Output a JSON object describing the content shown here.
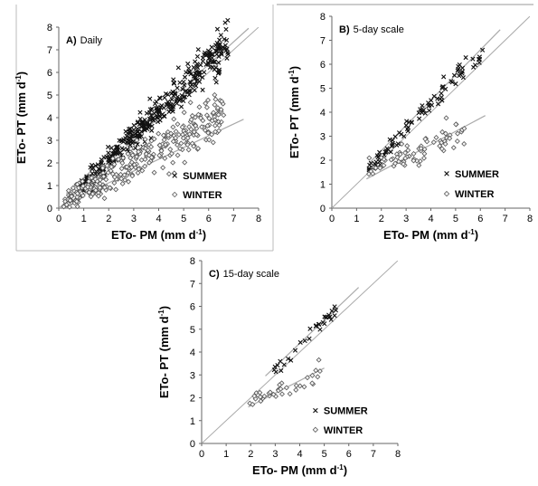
{
  "chart_data": [
    {
      "type": "scatter",
      "panel_label": "A)",
      "title": "Daily",
      "xlabel": "ETo- PM (mm d",
      "ylabel": "ETo- PT (mm d",
      "unit_superscript": "-1",
      "label_close": ")",
      "xlim": [
        0,
        8
      ],
      "ylim": [
        0,
        8
      ],
      "xticks": [
        "0",
        "1",
        "2",
        "3",
        "4",
        "5",
        "6",
        "7",
        "8"
      ],
      "yticks": [
        "0",
        "1",
        "2",
        "3",
        "4",
        "5",
        "6",
        "7",
        "8"
      ],
      "grid": false,
      "legend_position": "bottom-right",
      "one_to_one_line": true,
      "series": [
        {
          "name": "SUMMER",
          "marker": "x",
          "x_range": [
            0.8,
            6.8
          ],
          "slope": 1.07,
          "intercept": 0.0,
          "scatter": 0.35,
          "n": 380,
          "fit": {
            "slope": 1.0,
            "intercept": 0.35,
            "x": [
              0.3,
              7.6
            ]
          }
        },
        {
          "name": "WINTER",
          "marker": "diamond",
          "x_range": [
            0.2,
            6.6
          ],
          "slope": 0.62,
          "intercept": 0.15,
          "scatter": 0.45,
          "n": 330,
          "fit": {
            "slope": 0.52,
            "intercept": 0.08,
            "x": [
              0.2,
              7.4
            ]
          }
        }
      ]
    },
    {
      "type": "scatter",
      "panel_label": "B)",
      "title": "5-day scale",
      "xlabel": "ETo- PM (mm d",
      "ylabel": "ETo- PT (mm d",
      "unit_superscript": "-1",
      "label_close": ")",
      "xlim": [
        0,
        8
      ],
      "ylim": [
        0,
        8
      ],
      "xticks": [
        "0",
        "1",
        "2",
        "3",
        "4",
        "5",
        "6",
        "7",
        "8"
      ],
      "yticks": [
        "0",
        "1",
        "2",
        "3",
        "4",
        "5",
        "6",
        "7",
        "8"
      ],
      "grid": false,
      "legend_position": "bottom-right",
      "one_to_one_line": true,
      "series": [
        {
          "name": "SUMMER",
          "marker": "x",
          "x_range": [
            1.5,
            6.2
          ],
          "slope": 1.08,
          "intercept": 0.0,
          "scatter": 0.2,
          "n": 90,
          "fit": {
            "slope": 1.05,
            "intercept": 0.3,
            "x": [
              1.5,
              6.8
            ]
          }
        },
        {
          "name": "WINTER",
          "marker": "diamond",
          "x_range": [
            1.4,
            5.4
          ],
          "slope": 0.45,
          "intercept": 0.9,
          "scatter": 0.3,
          "n": 75,
          "fit": {
            "slope": 0.55,
            "intercept": 0.45,
            "x": [
              1.4,
              6.2
            ]
          }
        }
      ]
    },
    {
      "type": "scatter",
      "panel_label": "C)",
      "title": "15-day scale",
      "xlabel": "ETo- PM (mm d",
      "ylabel": "ETo- PT (mm d",
      "unit_superscript": "-1",
      "label_close": ")",
      "xlim": [
        0,
        8
      ],
      "ylim": [
        0,
        8
      ],
      "xticks": [
        "0",
        "1",
        "2",
        "3",
        "4",
        "5",
        "6",
        "7",
        "8"
      ],
      "yticks": [
        "0",
        "1",
        "2",
        "3",
        "4",
        "5",
        "6",
        "7",
        "8"
      ],
      "grid": false,
      "legend_position": "bottom-right",
      "one_to_one_line": true,
      "series": [
        {
          "name": "SUMMER",
          "marker": "x",
          "x_range": [
            2.6,
            5.6
          ],
          "slope": 1.08,
          "intercept": 0.0,
          "scatter": 0.15,
          "n": 32,
          "fit": {
            "slope": 1.02,
            "intercept": 0.3,
            "x": [
              2.6,
              6.4
            ]
          }
        },
        {
          "name": "WINTER",
          "marker": "diamond",
          "x_range": [
            1.9,
            4.9
          ],
          "slope": 0.42,
          "intercept": 1.0,
          "scatter": 0.22,
          "n": 38,
          "fit": {
            "slope": 0.55,
            "intercept": 0.55,
            "x": [
              1.9,
              5.0
            ]
          }
        }
      ]
    }
  ]
}
